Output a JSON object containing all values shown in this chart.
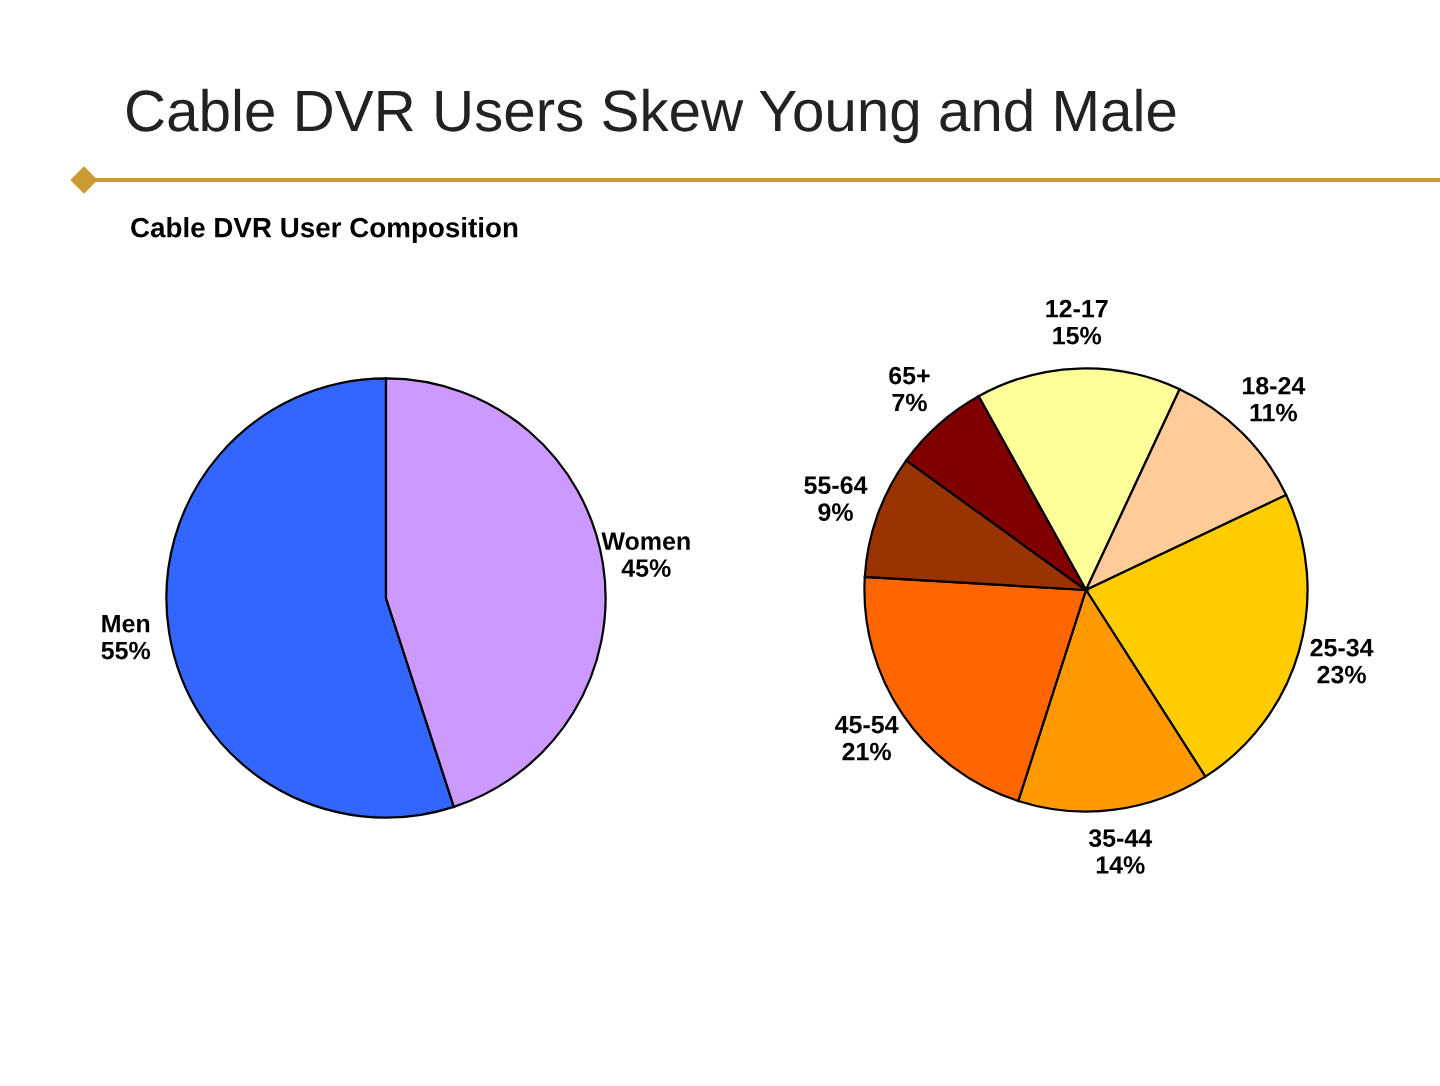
{
  "chart_data": [
    {
      "type": "pie",
      "title": "Cable DVR Users Skew Young and Male",
      "subtitle": "Cable DVR User Composition",
      "categories": [
        "Men",
        "Women"
      ],
      "values": [
        55,
        45
      ],
      "value_labels": [
        "55%",
        "45%"
      ],
      "colors": [
        "#3366ff",
        "#cc99ff"
      ]
    },
    {
      "type": "pie",
      "categories": [
        "12-17",
        "18-24",
        "25-34",
        "35-44",
        "45-54",
        "55-64",
        "65+"
      ],
      "values": [
        15,
        11,
        23,
        14,
        21,
        9,
        7
      ],
      "value_labels": [
        "15%",
        "11%",
        "23%",
        "14%",
        "21%",
        "9%",
        "7%"
      ],
      "colors": [
        "#ffff99",
        "#ffcc99",
        "#ffcc00",
        "#ff9900",
        "#ff6600",
        "#993300",
        "#800000"
      ]
    }
  ]
}
